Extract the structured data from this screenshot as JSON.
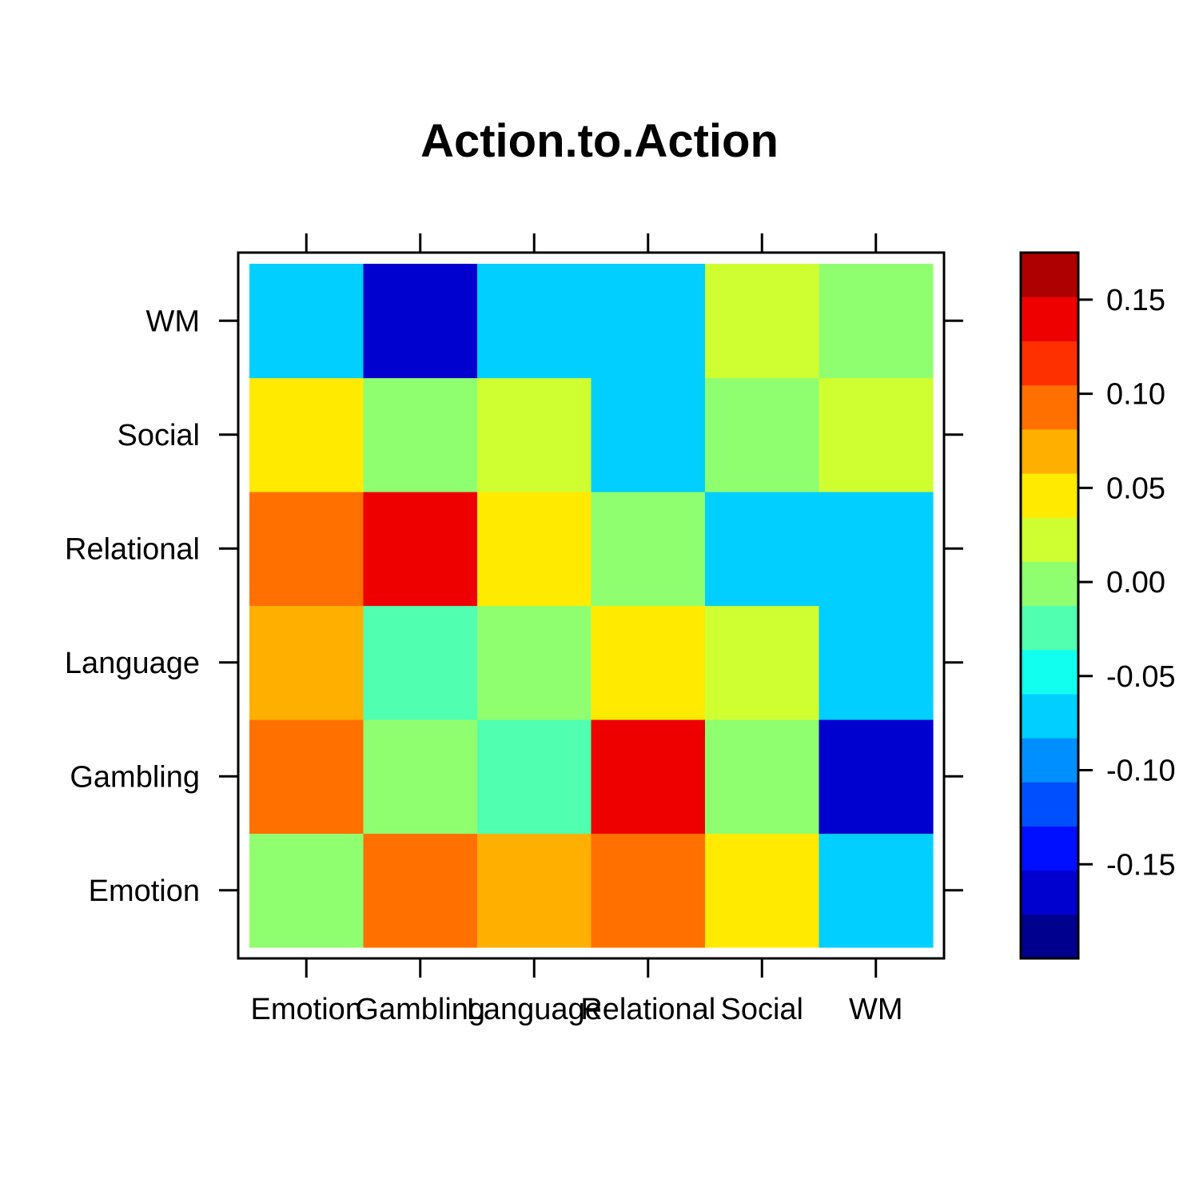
{
  "chart_data": {
    "type": "heatmap",
    "title": "Action.to.Action",
    "x_labels": [
      "Emotion",
      "Gambling",
      "Language",
      "Relational",
      "Social",
      "WM"
    ],
    "y_labels": [
      "Emotion",
      "Gambling",
      "Language",
      "Relational",
      "Social",
      "WM"
    ],
    "values": [
      [
        0.01,
        0.115,
        0.085,
        0.105,
        0.055,
        -0.075
      ],
      [
        0.115,
        0.01,
        -0.015,
        0.165,
        0.01,
        -0.165
      ],
      [
        0.085,
        -0.015,
        0.01,
        0.055,
        0.035,
        -0.075
      ],
      [
        0.105,
        0.165,
        0.055,
        0.01,
        -0.075,
        -0.055
      ],
      [
        0.055,
        0.01,
        0.035,
        -0.075,
        0.01,
        0.035
      ],
      [
        -0.075,
        -0.165,
        -0.075,
        -0.055,
        0.035,
        0.01
      ]
    ],
    "colorbar": {
      "breaks": [
        -0.175,
        -0.15,
        -0.125,
        -0.1,
        -0.075,
        -0.05,
        -0.025,
        0.0,
        0.025,
        0.05,
        0.075,
        0.1,
        0.125,
        0.15,
        0.175
      ],
      "colors": [
        "#00008F",
        "#0000CF",
        "#000FFF",
        "#004FFF",
        "#008FFF",
        "#00CFFF",
        "#10FFEF",
        "#50FFAF",
        "#8FFF70",
        "#CFFF30",
        "#FFEA00",
        "#FFAF00",
        "#FF7000",
        "#FF3000",
        "#EF0000",
        "#AF0000"
      ],
      "tick_values": [
        -0.15,
        -0.1,
        -0.05,
        0.0,
        0.05,
        0.1,
        0.15
      ],
      "tick_labels": [
        "-0.15",
        "-0.10",
        "-0.05",
        "0.00",
        "0.05",
        "0.10",
        "0.15"
      ]
    }
  }
}
